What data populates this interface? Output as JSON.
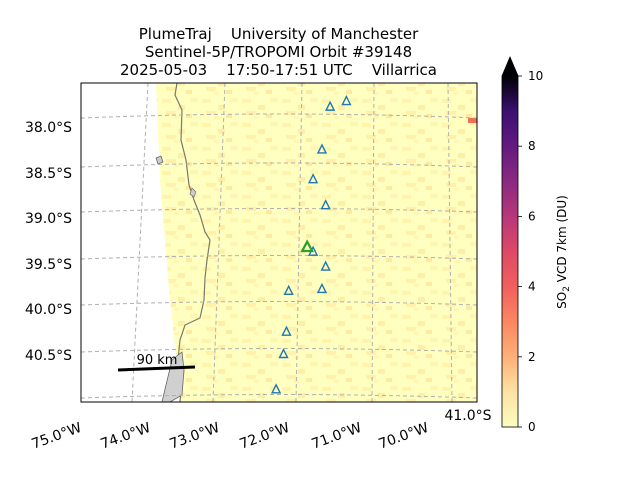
{
  "title": {
    "line1": "PlumeTraj    University of Manchester",
    "line2": "Sentinel-5P/TROPOMI Orbit #39148",
    "line3": "2025-05-03    17:50-17:51 UTC    Villarrica"
  },
  "axes": {
    "lat_labels": [
      "38.0°S",
      "38.5°S",
      "39.0°S",
      "39.5°S",
      "40.0°S",
      "40.5°S",
      "41.0°S"
    ],
    "lon_labels": [
      "75.0°W",
      "74.0°W",
      "73.0°W",
      "72.0°W",
      "71.0°W",
      "70.0°W"
    ]
  },
  "scale_bar": {
    "label": "90 km"
  },
  "colorbar": {
    "label": "SO",
    "label_sub": "2",
    "label_rest": " VCD 7km (DU)",
    "ticks": [
      "0",
      "2",
      "4",
      "6",
      "8",
      "10"
    ],
    "range": [
      0,
      10
    ],
    "colormap": "magma_r",
    "extend": "max"
  },
  "markers": {
    "volcano": {
      "name": "Villarrica",
      "lon": -71.93,
      "lat": -39.42,
      "color": "#2ca02c"
    },
    "stations_color": "#1f77b4",
    "stations": [
      {
        "lon": -71.62,
        "lat": -37.91
      },
      {
        "lon": -71.4,
        "lat": -37.85
      },
      {
        "lon": -71.73,
        "lat": -38.37
      },
      {
        "lon": -71.85,
        "lat": -38.69
      },
      {
        "lon": -71.68,
        "lat": -38.97
      },
      {
        "lon": -71.85,
        "lat": -39.47
      },
      {
        "lon": -71.68,
        "lat": -39.63
      },
      {
        "lon": -71.73,
        "lat": -39.87
      },
      {
        "lon": -72.18,
        "lat": -39.89
      },
      {
        "lon": -72.21,
        "lat": -40.33
      },
      {
        "lon": -72.25,
        "lat": -40.57
      },
      {
        "lon": -72.35,
        "lat": -40.95
      }
    ]
  },
  "colors": {
    "so2_background": "#ffffc0",
    "land_edge": "#7a7a6a",
    "sea_land_fill": "#d0d0d0",
    "grid": "#b0b0b0",
    "hotspot": "#f07050"
  }
}
